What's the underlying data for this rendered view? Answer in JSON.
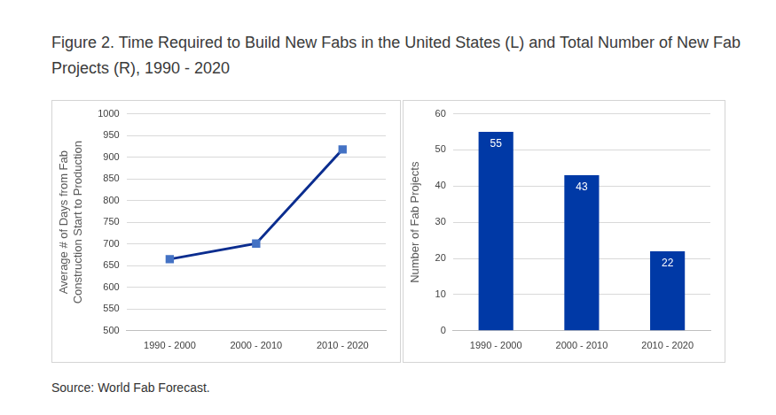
{
  "title": "Figure 2. Time Required to Build New Fabs in the United States (L) and Total Number of New Fab Projects (R), 1990 - 2020",
  "source": "Source: World Fab Forecast.",
  "chart_data": [
    {
      "type": "line",
      "ylabel": [
        "Average # of Days from Fab",
        "Construction Start to Production"
      ],
      "categories": [
        "1990 - 2000",
        "2000 - 2010",
        "2010 - 2020"
      ],
      "values": [
        665,
        701,
        918
      ],
      "color": "#0b2d8f",
      "marker": "square",
      "line_style": "solid",
      "ylim": [
        500,
        1000
      ],
      "yticks": [
        500,
        550,
        600,
        650,
        700,
        750,
        800,
        850,
        900,
        950,
        1000
      ],
      "grid": true
    },
    {
      "type": "bar",
      "ylabel": "Number of Fab Projects",
      "categories": [
        "1990 - 2000",
        "2000 - 2010",
        "2010 - 2020"
      ],
      "values": [
        55,
        43,
        22
      ],
      "color": "#0039a6",
      "ylim": [
        0,
        60
      ],
      "yticks": [
        0,
        10,
        20,
        30,
        40,
        50,
        60
      ],
      "grid": true,
      "data_labels": true
    }
  ]
}
